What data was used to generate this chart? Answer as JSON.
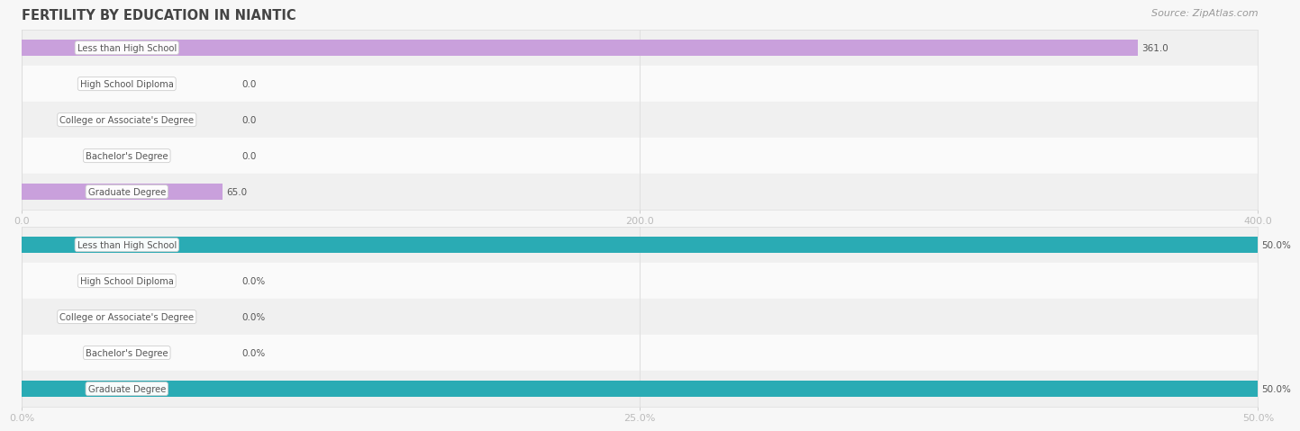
{
  "title": "FERTILITY BY EDUCATION IN NIANTIC",
  "source": "Source: ZipAtlas.com",
  "top_chart": {
    "categories": [
      "Less than High School",
      "High School Diploma",
      "College or Associate's Degree",
      "Bachelor's Degree",
      "Graduate Degree"
    ],
    "values": [
      361.0,
      0.0,
      0.0,
      0.0,
      65.0
    ],
    "bar_color": "#c9a0dc",
    "xlim": [
      0,
      400
    ],
    "xticks": [
      0.0,
      200.0,
      400.0
    ],
    "xtick_labels": [
      "0.0",
      "200.0",
      "400.0"
    ],
    "value_labels": [
      "361.0",
      "0.0",
      "0.0",
      "0.0",
      "65.0"
    ]
  },
  "bottom_chart": {
    "categories": [
      "Less than High School",
      "High School Diploma",
      "College or Associate's Degree",
      "Bachelor's Degree",
      "Graduate Degree"
    ],
    "values": [
      50.0,
      0.0,
      0.0,
      0.0,
      50.0
    ],
    "bar_color": "#2aabb4",
    "xlim": [
      0,
      50
    ],
    "xticks": [
      0.0,
      25.0,
      50.0
    ],
    "xtick_labels": [
      "0.0%",
      "25.0%",
      "50.0%"
    ],
    "value_labels": [
      "50.0%",
      "0.0%",
      "0.0%",
      "0.0%",
      "50.0%"
    ]
  },
  "bg_color": "#f7f7f7",
  "panel_color": "#ffffff",
  "bar_height": 0.45,
  "label_text_color": "#555555",
  "title_color": "#444444",
  "source_color": "#999999",
  "tick_color": "#bbbbbb",
  "grid_color": "#e0e0e0",
  "row_colors": [
    "#f0f0f0",
    "#fafafa"
  ]
}
